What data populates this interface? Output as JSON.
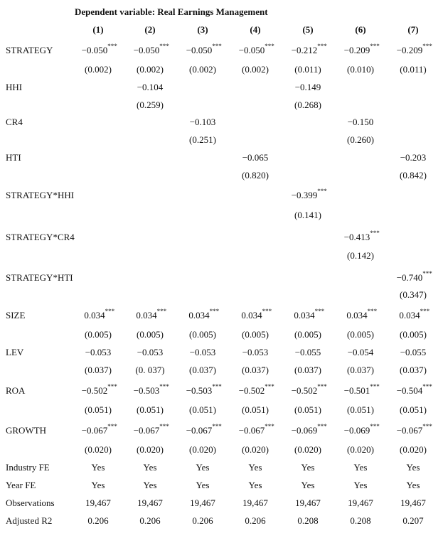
{
  "table": {
    "title": "Dependent variable: Real Earnings Management",
    "columns": [
      "(1)",
      "(2)",
      "(3)",
      "(4)",
      "(5)",
      "(6)",
      "(7)"
    ],
    "rows": [
      {
        "label": "STRATEGY",
        "coef": [
          {
            "value": "−0.050",
            "stars": "***"
          },
          {
            "value": "−0.050",
            "stars": "***"
          },
          {
            "value": "−0.050",
            "stars": "***"
          },
          {
            "value": "−0.050",
            "stars": "***"
          },
          {
            "value": "−0.212",
            "stars": "***"
          },
          {
            "value": "−0.209",
            "stars": "***"
          },
          {
            "value": "−0.209",
            "stars": "***"
          }
        ],
        "se": [
          "(0.002)",
          "(0.002)",
          "(0.002)",
          "(0.002)",
          "(0.011)",
          "(0.010)",
          "(0.011)"
        ]
      },
      {
        "label": "HHI",
        "coef": [
          null,
          {
            "value": "−0.104"
          },
          null,
          null,
          {
            "value": "−0.149"
          },
          null,
          null
        ],
        "se": [
          null,
          "(0.259)",
          null,
          null,
          "(0.268)",
          null,
          null
        ]
      },
      {
        "label": "CR4",
        "coef": [
          null,
          null,
          {
            "value": "−0.103"
          },
          null,
          null,
          {
            "value": "−0.150"
          },
          null
        ],
        "se": [
          null,
          null,
          "(0.251)",
          null,
          null,
          "(0.260)",
          null
        ]
      },
      {
        "label": "HTI",
        "coef": [
          null,
          null,
          null,
          {
            "value": "−0.065"
          },
          null,
          null,
          {
            "value": "−0.203"
          }
        ],
        "se": [
          null,
          null,
          null,
          "(0.820)",
          null,
          null,
          "(0.842)"
        ]
      },
      {
        "label": "STRATEGY*HHI",
        "coef": [
          null,
          null,
          null,
          null,
          {
            "value": "−0.399",
            "stars": "***"
          },
          null,
          null
        ],
        "se": [
          null,
          null,
          null,
          null,
          "(0.141)",
          null,
          null
        ]
      },
      {
        "label": "STRATEGY*CR4",
        "coef": [
          null,
          null,
          null,
          null,
          null,
          {
            "value": "−0.413",
            "stars": "***"
          },
          null
        ],
        "se": [
          null,
          null,
          null,
          null,
          null,
          "(0.142)",
          null
        ]
      },
      {
        "label": "STRATEGY*HTI",
        "coef": [
          null,
          null,
          null,
          null,
          null,
          null,
          {
            "value": "−0.740",
            "stars": "***"
          }
        ],
        "se": [
          null,
          null,
          null,
          null,
          null,
          null,
          "(0.347)"
        ]
      },
      {
        "label": "SIZE",
        "coef": [
          {
            "value": "0.034",
            "stars": "***"
          },
          {
            "value": "0.034",
            "stars": "***"
          },
          {
            "value": "0.034",
            "stars": "***"
          },
          {
            "value": "0.034",
            "stars": "***"
          },
          {
            "value": "0.034",
            "stars": "***"
          },
          {
            "value": "0.034",
            "stars": "***"
          },
          {
            "value": "0.034",
            "stars": "***"
          }
        ],
        "se": [
          "(0.005)",
          "(0.005)",
          "(0.005)",
          "(0.005)",
          "(0.005)",
          "(0.005)",
          "(0.005)"
        ]
      },
      {
        "label": "LEV",
        "coef": [
          {
            "value": "−0.053"
          },
          {
            "value": "−0.053"
          },
          {
            "value": "−0.053"
          },
          {
            "value": "−0.053"
          },
          {
            "value": "−0.055"
          },
          {
            "value": "−0.054"
          },
          {
            "value": "−0.055"
          }
        ],
        "se": [
          "(0.037)",
          "(0. 037)",
          "(0.037)",
          "(0.037)",
          "(0.037)",
          "(0.037)",
          "(0.037)"
        ]
      },
      {
        "label": "ROA",
        "coef": [
          {
            "value": "−0.502",
            "stars": "***"
          },
          {
            "value": "−0.503",
            "stars": "***"
          },
          {
            "value": "−0.503",
            "stars": "***"
          },
          {
            "value": "−0.502",
            "stars": "***"
          },
          {
            "value": "−0.502",
            "stars": "***"
          },
          {
            "value": "−0.501",
            "stars": "***"
          },
          {
            "value": "−0.504",
            "stars": "***"
          }
        ],
        "se": [
          "(0.051)",
          "(0.051)",
          "(0.051)",
          "(0.051)",
          "(0.051)",
          "(0.051)",
          "(0.051)"
        ]
      },
      {
        "label": "GROWTH",
        "coef": [
          {
            "value": "−0.067",
            "stars": "***"
          },
          {
            "value": "−0.067",
            "stars": "***"
          },
          {
            "value": "−0.067",
            "stars": "***"
          },
          {
            "value": "−0.067",
            "stars": "***"
          },
          {
            "value": "−0.069",
            "stars": "***"
          },
          {
            "value": "−0.069",
            "stars": "***"
          },
          {
            "value": "−0.067",
            "stars": "***"
          }
        ],
        "se": [
          "(0.020)",
          "(0.020)",
          "(0.020)",
          "(0.020)",
          "(0.020)",
          "(0.020)",
          "(0.020)"
        ]
      }
    ],
    "footer_rows": [
      {
        "label": "Industry FE",
        "values": [
          "Yes",
          "Yes",
          "Yes",
          "Yes",
          "Yes",
          "Yes",
          "Yes"
        ]
      },
      {
        "label": "Year FE",
        "values": [
          "Yes",
          "Yes",
          "Yes",
          "Yes",
          "Yes",
          "Yes",
          "Yes"
        ]
      },
      {
        "label": "Observations",
        "values": [
          "19,467",
          "19,467",
          "19,467",
          "19,467",
          "19,467",
          "19,467",
          "19,467"
        ]
      },
      {
        "label": "Adjusted R2",
        "values": [
          "0.206",
          "0.206",
          "0.206",
          "0.206",
          "0.208",
          "0.208",
          "0.207"
        ]
      }
    ]
  }
}
